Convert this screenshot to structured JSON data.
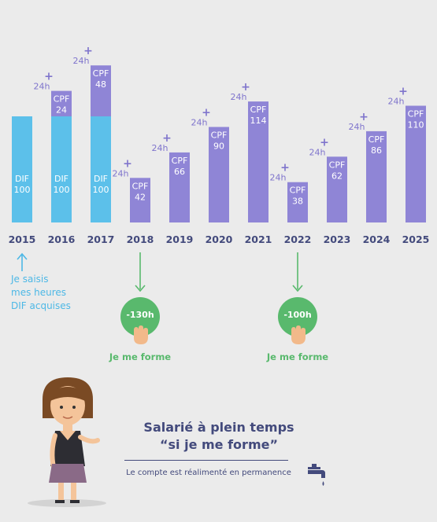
{
  "chart_data": {
    "type": "bar",
    "categories": [
      "2015",
      "2016",
      "2017",
      "2018",
      "2019",
      "2020",
      "2021",
      "2022",
      "2023",
      "2024",
      "2025"
    ],
    "series": [
      {
        "name": "DIF",
        "values": [
          100,
          100,
          100,
          0,
          0,
          0,
          0,
          0,
          0,
          0,
          0
        ]
      },
      {
        "name": "CPF",
        "values": [
          0,
          24,
          48,
          42,
          66,
          90,
          114,
          38,
          62,
          86,
          110
        ]
      }
    ],
    "increment_label": "24h",
    "increment_visible": [
      false,
      true,
      true,
      true,
      true,
      true,
      true,
      true,
      true,
      true,
      true
    ],
    "colors": {
      "DIF": "#5cc0ea",
      "CPF": "#8f85d6"
    },
    "ylim": [
      0,
      185
    ]
  },
  "note": {
    "lines": [
      "Je saisis",
      "mes heures",
      "DIF acquises"
    ]
  },
  "trainings": [
    {
      "badge": "-130h",
      "label": "Je me forme"
    },
    {
      "badge": "-100h",
      "label": "Je me forme"
    }
  ],
  "caption": {
    "line1": "Salarié à plein temps",
    "line2": "“si je me forme”",
    "subtitle": "Le compte est réalimenté en permanence"
  }
}
